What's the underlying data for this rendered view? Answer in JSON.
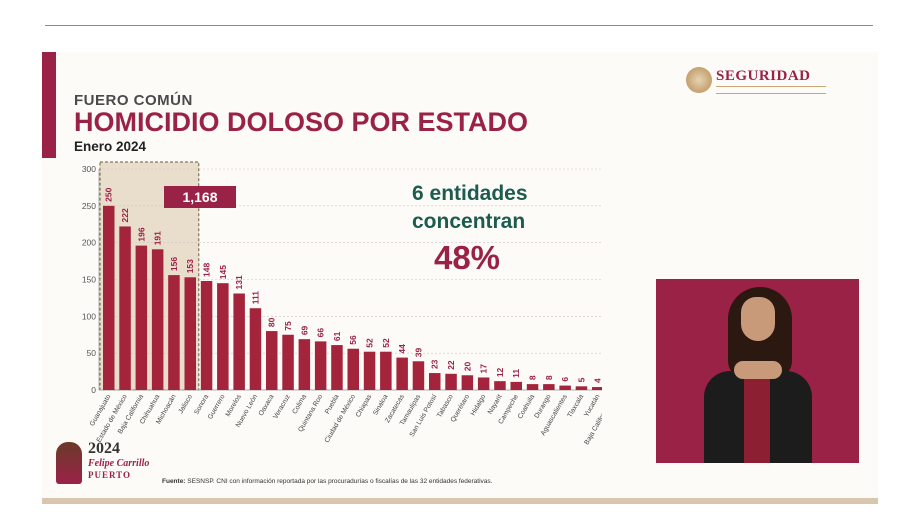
{
  "header": {
    "kicker": "FUERO COMÚN",
    "title": "HOMICIDIO DOLOSO POR ESTADO",
    "period": "Enero 2024"
  },
  "brand": {
    "name": "SEGURIDAD",
    "seal_icon": "government-seal-icon"
  },
  "callout": {
    "line1": "6 entidades",
    "line2": "concentran",
    "percent": "48%"
  },
  "chart_data": {
    "type": "bar",
    "categories": [
      "Guanajuato",
      "Estado de México",
      "Baja California",
      "Chihuahua",
      "Michoacán",
      "Jalisco",
      "Sonora",
      "Guerrero",
      "Morelos",
      "Nuevo León",
      "Oaxaca",
      "Veracruz",
      "Colima",
      "Quintana Roo",
      "Puebla",
      "Ciudad de México",
      "Chiapas",
      "Sinaloa",
      "Zacatecas",
      "Tamaulipas",
      "San Luis Potosí",
      "Tabasco",
      "Querétaro",
      "Hidalgo",
      "Nayarit",
      "Campeche",
      "Coahuila",
      "Durango",
      "Aguascalientes",
      "Tlaxcala",
      "Yucatán",
      "Baja California Sur"
    ],
    "values": [
      250,
      222,
      196,
      191,
      156,
      153,
      148,
      145,
      131,
      111,
      80,
      75,
      69,
      66,
      61,
      56,
      52,
      52,
      44,
      39,
      23,
      22,
      20,
      17,
      12,
      11,
      8,
      8,
      6,
      5,
      4,
      0
    ],
    "yticks": [
      0,
      50,
      100,
      150,
      200,
      250,
      300
    ],
    "ylim": [
      0,
      300
    ],
    "highlight": {
      "count": 6,
      "label": "1,168"
    },
    "colors": {
      "bar": "#a4243b",
      "highlight_box": "#d9c5a6",
      "label_box": "#9b2247",
      "grid": "#cfc3c3"
    }
  },
  "source": {
    "label": "Fuente:",
    "text": " SESNSP. CNI con información reportada por las procuradurías o fiscalías de las 32 entidades federativas."
  },
  "logo": {
    "year": "2024",
    "name": "Felipe Carrillo",
    "sub": "PUERTO"
  }
}
